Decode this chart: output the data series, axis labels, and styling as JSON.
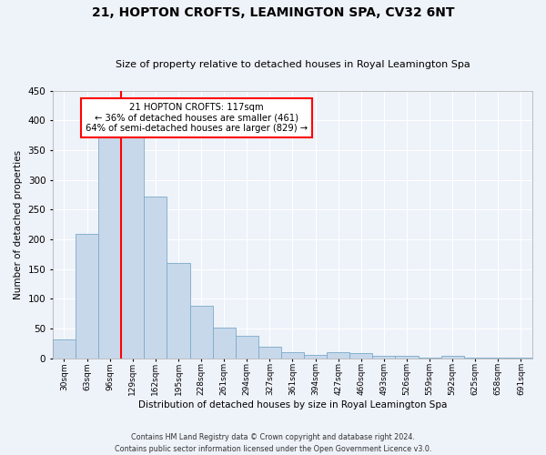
{
  "title": "21, HOPTON CROFTS, LEAMINGTON SPA, CV32 6NT",
  "subtitle": "Size of property relative to detached houses in Royal Leamington Spa",
  "xlabel": "Distribution of detached houses by size in Royal Leamington Spa",
  "ylabel": "Number of detached properties",
  "bar_color": "#c8d8eb",
  "bar_edge_color": "#7aaac8",
  "bar_heights": [
    32,
    210,
    375,
    375,
    272,
    161,
    88,
    52,
    38,
    20,
    11,
    6,
    10,
    9,
    5,
    5,
    1,
    5,
    1,
    1,
    1
  ],
  "categories": [
    "30sqm",
    "63sqm",
    "96sqm",
    "129sqm",
    "162sqm",
    "195sqm",
    "228sqm",
    "261sqm",
    "294sqm",
    "327sqm",
    "361sqm",
    "394sqm",
    "427sqm",
    "460sqm",
    "493sqm",
    "526sqm",
    "559sqm",
    "592sqm",
    "625sqm",
    "658sqm",
    "691sqm"
  ],
  "red_line_x": 2.5,
  "annotation_text": "21 HOPTON CROFTS: 117sqm\n← 36% of detached houses are smaller (461)\n64% of semi-detached houses are larger (829) →",
  "annotation_box_color": "white",
  "annotation_box_edge_color": "red",
  "ylim": [
    0,
    450
  ],
  "yticks": [
    0,
    50,
    100,
    150,
    200,
    250,
    300,
    350,
    400,
    450
  ],
  "footer_line1": "Contains HM Land Registry data © Crown copyright and database right 2024.",
  "footer_line2": "Contains public sector information licensed under the Open Government Licence v3.0.",
  "background_color": "#eef2f9",
  "grid_color": "white"
}
